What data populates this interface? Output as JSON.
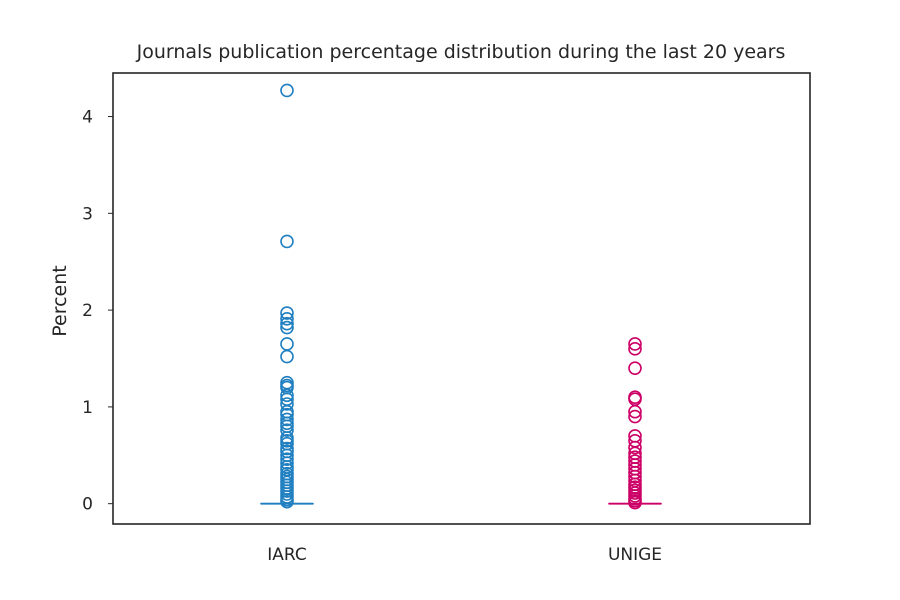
{
  "chart_data": {
    "type": "boxplot",
    "title": "Journals publication percentage distribution during the last 20 years",
    "xlabel": "",
    "ylabel": "Percent",
    "ylim": [
      -0.21,
      4.45
    ],
    "yticks": [
      0,
      1,
      2,
      3,
      4
    ],
    "grid": false,
    "categories": [
      "IARC",
      "UNIGE"
    ],
    "series": [
      {
        "color": "#1f7fc0",
        "median": 0,
        "q1": 0,
        "q3": 0,
        "whisker_low": 0,
        "whisker_high": 0,
        "outliers": [
          4.27,
          2.71,
          1.97,
          1.91,
          1.86,
          1.82,
          1.65,
          1.52,
          1.25,
          1.22,
          1.2,
          1.12,
          1.08,
          1.03,
          0.95,
          0.92,
          0.87,
          0.83,
          0.8,
          0.76,
          0.68,
          0.65,
          0.62,
          0.57,
          0.54,
          0.5,
          0.46,
          0.42,
          0.38,
          0.35,
          0.31,
          0.28,
          0.25,
          0.22,
          0.19,
          0.16,
          0.13,
          0.1,
          0.07,
          0.04,
          0.02
        ]
      },
      {
        "color": "#cc0066",
        "median": 0,
        "q1": 0,
        "q3": 0,
        "whisker_low": 0,
        "whisker_high": 0,
        "outliers": [
          1.65,
          1.6,
          1.4,
          1.1,
          1.08,
          0.95,
          0.9,
          0.7,
          0.65,
          0.58,
          0.52,
          0.48,
          0.44,
          0.4,
          0.36,
          0.32,
          0.28,
          0.24,
          0.2,
          0.17,
          0.14,
          0.11,
          0.08,
          0.05,
          0.03,
          0.01
        ]
      }
    ]
  }
}
